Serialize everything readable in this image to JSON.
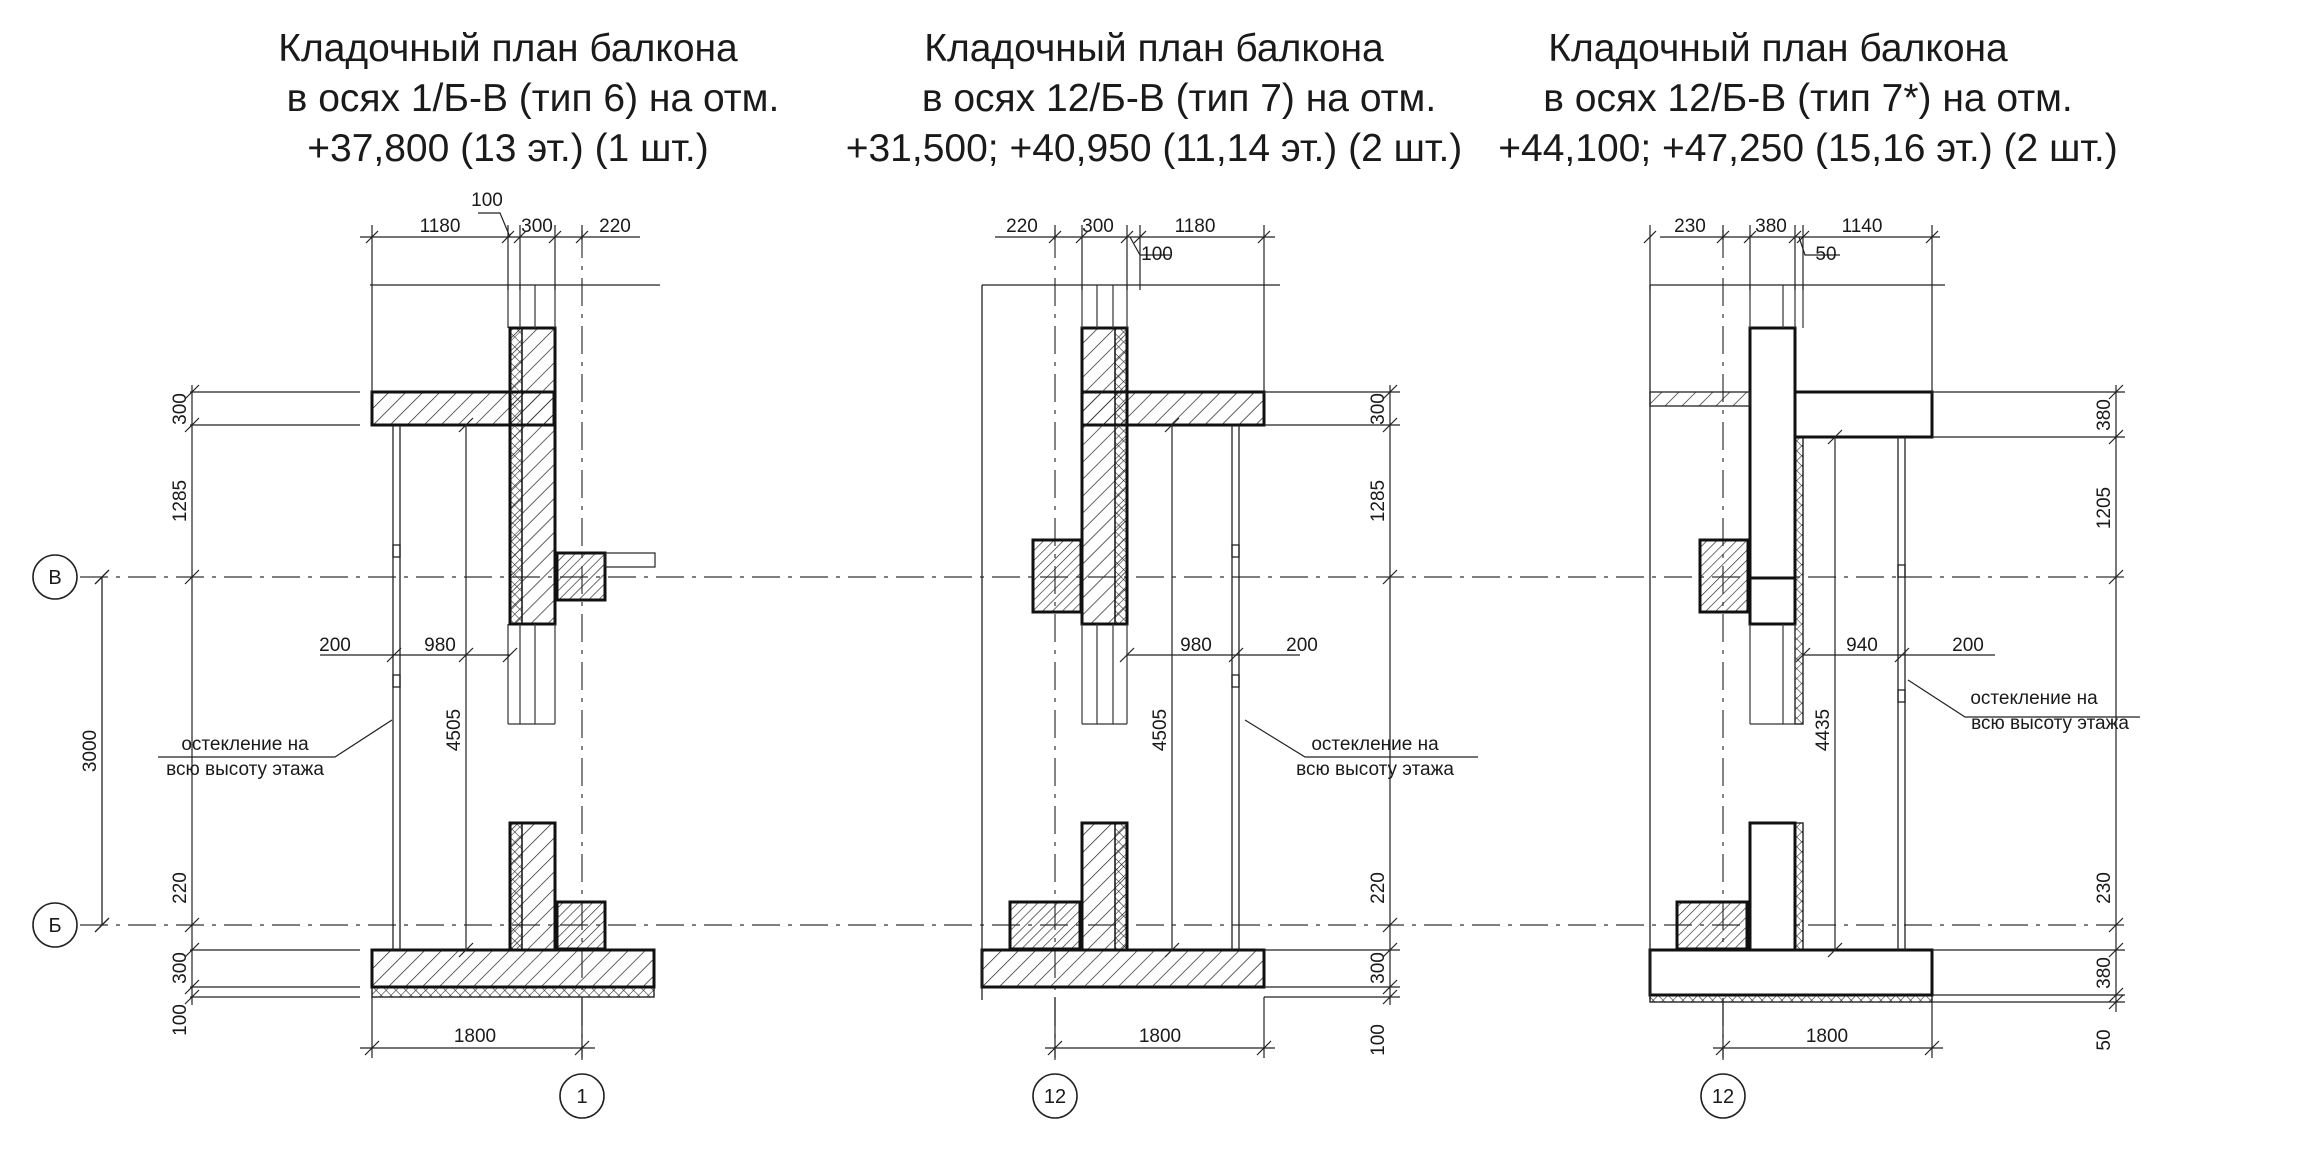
{
  "plans": [
    {
      "title_lines": [
        "Кладочный план балкона",
        "в осях 1/Б-В (тип 6) на отм.",
        "+37,800 (13 эт.) (1 шт.)"
      ],
      "top_dims": [
        "1180",
        "100",
        "300",
        "220"
      ],
      "side_dims": [
        "300",
        "1285",
        "220",
        "300",
        "100"
      ],
      "inner_dims": [
        "200",
        "980",
        "4505"
      ],
      "overall_dim": "3000",
      "bottom_dim": "1800",
      "note_lines": [
        "остекление на",
        "всю высоту этажа"
      ],
      "col_axis": "1",
      "row_axes": [
        "В",
        "Б"
      ]
    },
    {
      "title_lines": [
        "Кладочный план балкона",
        "в осях 12/Б-В (тип 7) на отм.",
        "+31,500; +40,950 (11,14 эт.) (2 шт.)"
      ],
      "top_dims": [
        "220",
        "300",
        "1180",
        "100"
      ],
      "side_dims": [
        "300",
        "1285",
        "220",
        "300",
        "100"
      ],
      "inner_dims": [
        "980",
        "200",
        "4505"
      ],
      "bottom_dim": "1800",
      "note_lines": [
        "остекление на",
        "всю высоту этажа"
      ],
      "col_axis": "12"
    },
    {
      "title_lines": [
        "Кладочный план балкона",
        "в осях 12/Б-В (тип 7*) на отм.",
        "+44,100; +47,250 (15,16 эт.) (2 шт.)"
      ],
      "top_dims": [
        "230",
        "380",
        "1140",
        "50"
      ],
      "side_dims": [
        "380",
        "1205",
        "230",
        "380",
        "50"
      ],
      "inner_dims": [
        "940",
        "200",
        "4435"
      ],
      "bottom_dim": "1800",
      "note_lines": [
        "остекление на",
        "всю высоту этажа"
      ],
      "col_axis": "12"
    }
  ]
}
